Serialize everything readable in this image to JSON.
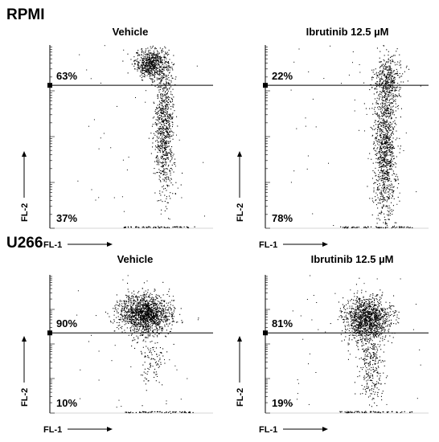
{
  "rows": [
    {
      "cell_line": "RPMI"
    },
    {
      "cell_line": "U266"
    }
  ],
  "chart_data": [
    {
      "type": "scatter",
      "title": "Vehicle",
      "xlabel": "FL-1",
      "ylabel": "FL-2",
      "upper_pct": "63%",
      "lower_pct": "37%",
      "gate_y": 0.78,
      "clusters": [
        {
          "cx": 0.62,
          "cy": 0.9,
          "sx": 0.05,
          "sy": 0.04,
          "n": 650
        },
        {
          "cx": 0.7,
          "cy": 0.55,
          "sx": 0.03,
          "sy": 0.18,
          "n": 850
        }
      ]
    },
    {
      "type": "scatter",
      "title": "Ibrutinib 12.5 µM",
      "xlabel": "FL-1",
      "ylabel": "FL-2",
      "upper_pct": "22%",
      "lower_pct": "78%",
      "gate_y": 0.78,
      "clusters": [
        {
          "cx": 0.75,
          "cy": 0.82,
          "sx": 0.045,
          "sy": 0.06,
          "n": 300
        },
        {
          "cx": 0.73,
          "cy": 0.45,
          "sx": 0.035,
          "sy": 0.22,
          "n": 1200
        }
      ]
    },
    {
      "type": "scatter",
      "title": "Vehicle",
      "xlabel": "FL-1",
      "ylabel": "FL-2",
      "upper_pct": "90%",
      "lower_pct": "10%",
      "gate_y": 0.58,
      "clusters": [
        {
          "cx": 0.58,
          "cy": 0.72,
          "sx": 0.08,
          "sy": 0.07,
          "n": 1500
        },
        {
          "cx": 0.62,
          "cy": 0.4,
          "sx": 0.04,
          "sy": 0.12,
          "n": 120
        }
      ]
    },
    {
      "type": "scatter",
      "title": "Ibrutinib 12.5 µM",
      "xlabel": "FL-1",
      "ylabel": "FL-2",
      "upper_pct": "81%",
      "lower_pct": "19%",
      "gate_y": 0.58,
      "clusters": [
        {
          "cx": 0.62,
          "cy": 0.68,
          "sx": 0.07,
          "sy": 0.08,
          "n": 1300
        },
        {
          "cx": 0.65,
          "cy": 0.35,
          "sx": 0.04,
          "sy": 0.15,
          "n": 300
        }
      ]
    }
  ]
}
